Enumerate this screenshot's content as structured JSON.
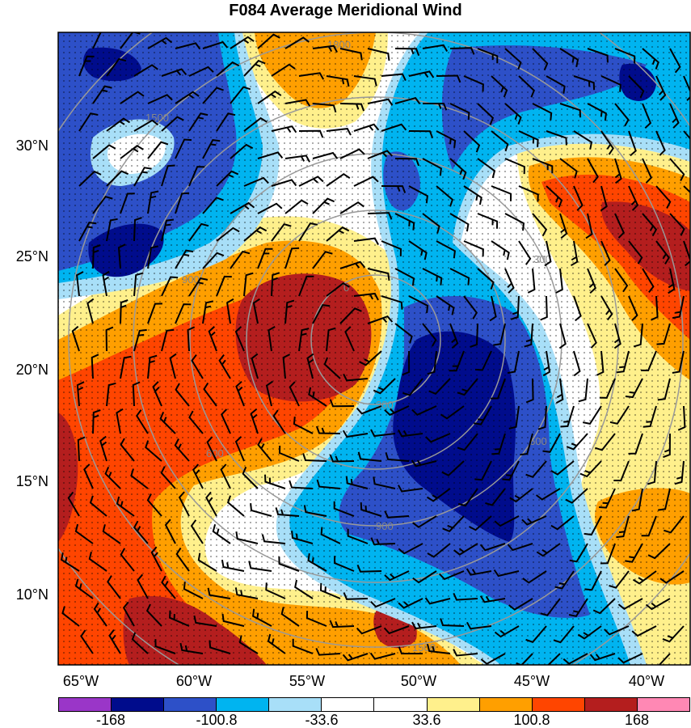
{
  "title": "F084 Average Meridional Wind",
  "lat_labels": [
    "30°N",
    "25°N",
    "20°N",
    "15°N",
    "10°N"
  ],
  "lon_labels": [
    "65°W",
    "60°W",
    "55°W",
    "50°W",
    "45°W",
    "40°W"
  ],
  "contour_labels": [
    "1500",
    "900",
    "600",
    "300",
    "0",
    "300",
    "600",
    "900",
    "1500",
    "1800"
  ],
  "colorbar": {
    "labels": [
      "-168",
      "-100.8",
      "-33.6",
      "33.6",
      "100.8",
      "168"
    ],
    "colors": [
      "#9a36c8",
      "#000c8c",
      "#2d50c8",
      "#00b4f0",
      "#a8dff8",
      "#ffffff",
      "#ffffff",
      "#fff08c",
      "#ff9f00",
      "#ff4500",
      "#b41e1e",
      "#ff88b4"
    ]
  },
  "field_colors": {
    "strong_negative": "#000c8c",
    "negative": "#2d50c8",
    "moderate_negative": "#00b4f0",
    "weak_negative": "#a8dff8",
    "near_zero": "#ffffff",
    "weak_positive": "#fff08c",
    "moderate_positive": "#ff9f00",
    "positive": "#ff4500",
    "strong_positive": "#b41e1e"
  }
}
